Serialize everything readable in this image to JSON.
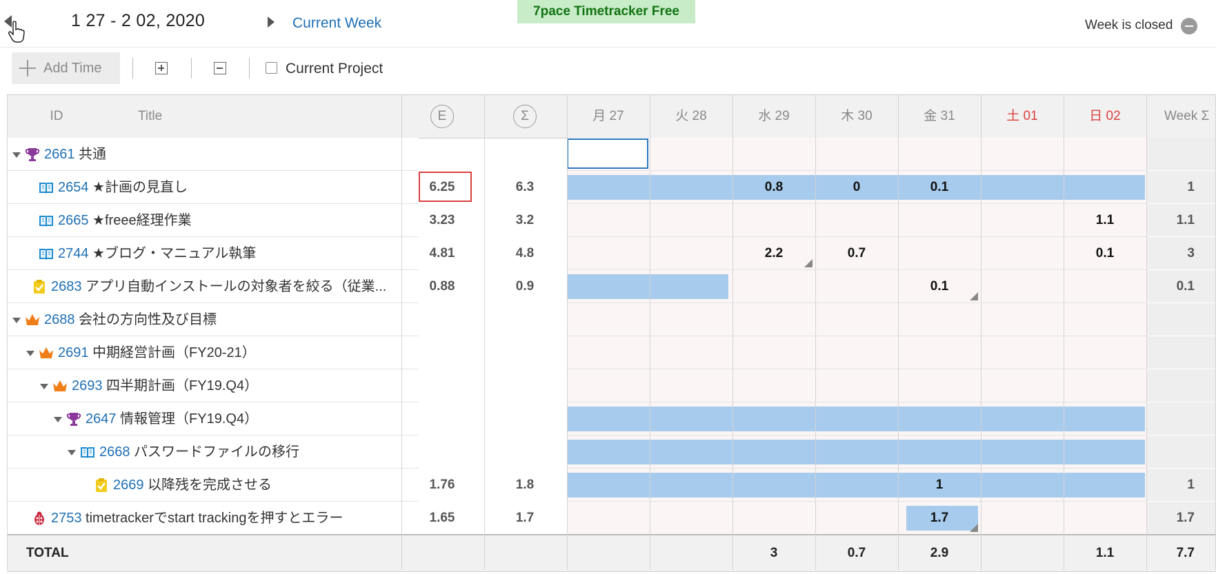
{
  "header": {
    "date_range": "1 27 - 2 02, 2020",
    "current_week_link": "Current Week",
    "banner": "7pace Timetracker Free",
    "week_status": "Week is closed"
  },
  "toolbar": {
    "add_time_label": "Add Time",
    "current_project_label": "Current Project",
    "current_project_checked": false
  },
  "columns": {
    "id": "ID",
    "title": "Title",
    "estimate_symbol": "E",
    "sum_symbol": "Σ",
    "days": [
      {
        "label": "月 27",
        "weekend": false
      },
      {
        "label": "火 28",
        "weekend": false
      },
      {
        "label": "水 29",
        "weekend": false
      },
      {
        "label": "木 30",
        "weekend": false
      },
      {
        "label": "金 31",
        "weekend": false
      },
      {
        "label": "土 01",
        "weekend": true
      },
      {
        "label": "日 02",
        "weekend": true
      }
    ],
    "week_total": "Week Σ"
  },
  "colors": {
    "accent_link": "#1f6fb5",
    "bar": "#a7cbec",
    "weekend_text": "#d9413f",
    "banner_bg": "#c8ecc8",
    "banner_text": "#117311"
  },
  "rows": [
    {
      "id": "2661",
      "title": "共通",
      "icon": "trophy-icon",
      "indent": 0,
      "caret": true,
      "estimate": "",
      "sum": "",
      "days": [
        "",
        "",
        "",
        "",
        "",
        "",
        ""
      ],
      "week": "",
      "bar_days": [],
      "selected_day": 0
    },
    {
      "id": "2654",
      "title": "★計画の見直し",
      "icon": "book-icon",
      "indent": 1,
      "caret": false,
      "estimate": "6.25",
      "sum": "6.3",
      "days": [
        "",
        "",
        "0.8",
        "0",
        "0.1",
        "",
        ""
      ],
      "week": "1",
      "bar_days": [
        0,
        1,
        2,
        3,
        4,
        5,
        6
      ],
      "highlight_estimate": true
    },
    {
      "id": "2665",
      "title": "★freee経理作業",
      "icon": "book-icon",
      "indent": 1,
      "caret": false,
      "estimate": "3.23",
      "sum": "3.2",
      "days": [
        "",
        "",
        "",
        "",
        "",
        "",
        "1.1"
      ],
      "week": "1.1",
      "bar_days": []
    },
    {
      "id": "2744",
      "title": "★ブログ・マニュアル執筆",
      "icon": "book-icon",
      "indent": 1,
      "caret": false,
      "estimate": "4.81",
      "sum": "4.8",
      "days": [
        "",
        "",
        "2.2",
        "0.7",
        "",
        "",
        "0.1"
      ],
      "week": "3",
      "bar_days": [],
      "corner_days": [
        2
      ]
    },
    {
      "id": "2683",
      "title": "アプリ自動インストールの対象者を絞る（従業...",
      "icon": "task-icon",
      "indent": 0.5,
      "caret": false,
      "estimate": "0.88",
      "sum": "0.9",
      "days": [
        "",
        "",
        "",
        "",
        "0.1",
        "",
        ""
      ],
      "week": "0.1",
      "bar_days": [
        0,
        1
      ],
      "partial_bar": true,
      "corner_days": [
        4
      ]
    },
    {
      "id": "2688",
      "title": "会社の方向性及び目標",
      "icon": "crown-icon",
      "indent": 0,
      "caret": true,
      "estimate": "",
      "sum": "",
      "days": [
        "",
        "",
        "",
        "",
        "",
        "",
        ""
      ],
      "week": "",
      "bar_days": []
    },
    {
      "id": "2691",
      "title": "中期経営計画（FY20-21）",
      "icon": "crown-icon",
      "indent": 1,
      "caret": true,
      "estimate": "",
      "sum": "",
      "days": [
        "",
        "",
        "",
        "",
        "",
        "",
        ""
      ],
      "week": "",
      "bar_days": []
    },
    {
      "id": "2693",
      "title": "四半期計画（FY19.Q4）",
      "icon": "crown-icon",
      "indent": 2,
      "caret": true,
      "estimate": "",
      "sum": "",
      "days": [
        "",
        "",
        "",
        "",
        "",
        "",
        ""
      ],
      "week": "",
      "bar_days": []
    },
    {
      "id": "2647",
      "title": "情報管理（FY19.Q4）",
      "icon": "trophy-icon",
      "indent": 3,
      "caret": true,
      "estimate": "",
      "sum": "",
      "days": [
        "",
        "",
        "",
        "",
        "",
        "",
        ""
      ],
      "week": "",
      "bar_days": [
        0,
        1,
        2,
        3,
        4,
        5,
        6
      ]
    },
    {
      "id": "2668",
      "title": "パスワードファイルの移行",
      "icon": "book-icon",
      "indent": 4,
      "caret": true,
      "estimate": "",
      "sum": "",
      "days": [
        "",
        "",
        "",
        "",
        "",
        "",
        ""
      ],
      "week": "",
      "bar_days": [
        0,
        1,
        2,
        3,
        4,
        5,
        6
      ]
    },
    {
      "id": "2669",
      "title": "以降残を完成させる",
      "icon": "task-icon",
      "indent": 5,
      "caret": false,
      "estimate": "1.76",
      "sum": "1.8",
      "days": [
        "",
        "",
        "",
        "",
        "1",
        "",
        ""
      ],
      "week": "1",
      "bar_days": [
        0,
        1,
        2,
        3,
        4,
        5,
        6
      ]
    },
    {
      "id": "2753",
      "title": "timetrackerでstart trackingを押すとエラー",
      "icon": "bug-icon",
      "indent": 0.5,
      "caret": false,
      "estimate": "1.65",
      "sum": "1.7",
      "days": [
        "",
        "",
        "",
        "",
        "1.7",
        "",
        ""
      ],
      "week": "1.7",
      "bar_days": [
        4
      ],
      "cell_bar": true,
      "corner_days": [
        4
      ]
    }
  ],
  "total": {
    "label": "TOTAL",
    "days": [
      "",
      "",
      "3",
      "0.7",
      "2.9",
      "",
      "1.1"
    ],
    "week": "7.7"
  }
}
